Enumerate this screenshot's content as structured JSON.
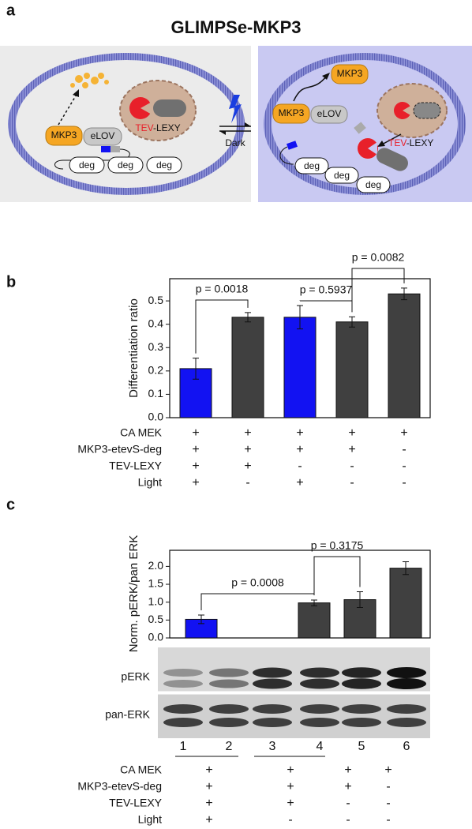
{
  "figure": {
    "panel_labels": [
      "a",
      "b",
      "c"
    ]
  },
  "diagram": {
    "title": "GLIMPSe-MKP3",
    "left": {
      "mkp3": "MKP3",
      "elov": "eLOV",
      "deg": [
        "deg",
        "deg",
        "deg"
      ],
      "tev": "TEV",
      "lexy": "-LEXY"
    },
    "arrow_label": "Dark",
    "right": {
      "mkp3_free": "MKP3",
      "mkp3": "MKP3",
      "elov": "eLOV",
      "deg": [
        "deg",
        "deg",
        "deg"
      ],
      "tev": "TEV",
      "lexy": "-LEXY"
    }
  },
  "chart_data": [
    {
      "type": "bar",
      "y_label": "Differentiation ratio",
      "categories": [
        null,
        null,
        null,
        null,
        null
      ],
      "values": [
        0.21,
        0.43,
        0.43,
        0.41,
        0.53
      ],
      "errors": [
        0.045,
        0.02,
        0.05,
        0.022,
        0.025
      ],
      "colors": [
        "#1212f2",
        "#404040",
        "#1212f2",
        "#404040",
        "#404040"
      ],
      "ylim": [
        0,
        0.595
      ],
      "yticks": [
        {
          "value": 0,
          "label": "0.0"
        },
        0.1,
        0.2,
        0.3,
        0.4,
        0.5
      ],
      "annotations": [
        "p = 0.0018",
        "p = 0.5937",
        "p = 0.0082"
      ],
      "conditions": [
        {
          "label": "CA MEK",
          "values": [
            "+",
            "+",
            "+",
            "+",
            "+"
          ]
        },
        {
          "label": "MKP3-etevS-deg",
          "values": [
            "+",
            "+",
            "+",
            "+",
            "-"
          ]
        },
        {
          "label": "TEV-LEXY",
          "values": [
            "+",
            "+",
            "-",
            "-",
            "-"
          ]
        },
        {
          "label": "Light",
          "values": [
            "+",
            "-",
            "+",
            "-",
            "-"
          ]
        }
      ]
    },
    {
      "type": "bar",
      "y_label": "Norm. pERK/pan ERK",
      "categories": [
        null,
        null,
        null,
        null,
        null
      ],
      "values": [
        0.52,
        null,
        0.98,
        1.07,
        1.95
      ],
      "errors": [
        0.12,
        null,
        0.08,
        0.22,
        0.18
      ],
      "colors": [
        "#1212f2",
        "#404040",
        "#404040",
        "#404040",
        "#404040"
      ],
      "ylim": [
        0,
        2.45
      ],
      "yticks": [
        {
          "value": 0,
          "label": "0.0"
        },
        0.5,
        {
          "value": 1,
          "label": "1.0"
        },
        1.5,
        {
          "value": 2,
          "label": "2.0"
        }
      ],
      "annotations": [
        "p = 0.0008",
        "p = 0.3175"
      ],
      "blot": {
        "rows": [
          "pERK",
          "pan-ERK"
        ],
        "lanes": [
          "1",
          "2",
          "3",
          "4",
          "5",
          "6"
        ]
      },
      "conditions": [
        {
          "label": "CA MEK",
          "values": [
            "+",
            "+",
            "+",
            "+"
          ]
        },
        {
          "label": "MKP3-etevS-deg",
          "values": [
            "+",
            "+",
            "+",
            "-"
          ]
        },
        {
          "label": "TEV-LEXY",
          "values": [
            "+",
            "+",
            "-",
            "-"
          ]
        },
        {
          "label": "Light",
          "values": [
            "+",
            "-",
            "-",
            "-"
          ]
        }
      ]
    }
  ]
}
